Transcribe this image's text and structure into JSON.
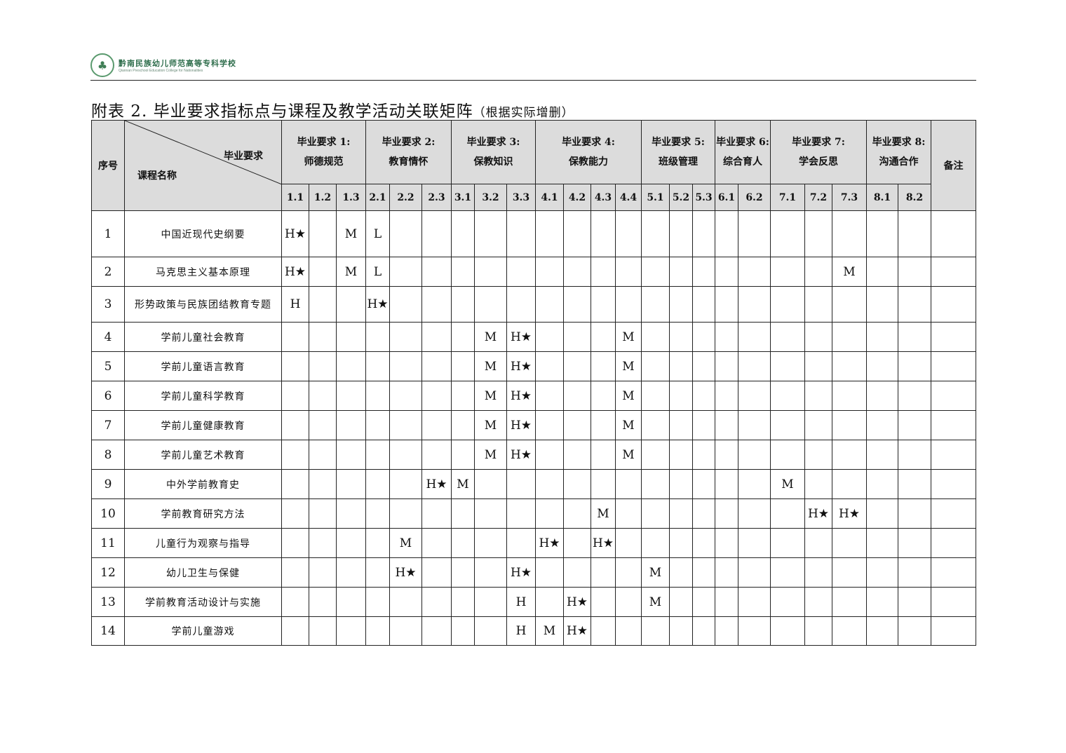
{
  "logo": {
    "cn": "黔南民族幼儿师范高等专科学校",
    "en": "Qiannan Preschool Education College for Nationalities"
  },
  "title": {
    "main": "附表 2. 毕业要求指标点与课程及教学活动关联矩阵",
    "note": "（根据实际增删）"
  },
  "header": {
    "seq": "序号",
    "diag_top": "毕业要求",
    "diag_bottom": "课程名称",
    "remark": "备注",
    "groups": [
      {
        "line1": "毕业要求 1:",
        "line2": "师德规范",
        "span": 3
      },
      {
        "line1": "毕业要求 2:",
        "line2": "教育情怀",
        "span": 3
      },
      {
        "line1": "毕业要求 3:",
        "line2": "保教知识",
        "span": 3
      },
      {
        "line1": "毕业要求 4:",
        "line2": "保教能力",
        "span": 4
      },
      {
        "line1": "毕业要求 5:",
        "line2": "班级管理",
        "span": 3
      },
      {
        "line1": "毕业要求 6:",
        "line2": "综合育人",
        "span": 2
      },
      {
        "line1": "毕业要求 7:",
        "line2": "学会反思",
        "span": 3
      },
      {
        "line1": "毕业要求 8:",
        "line2": "沟通合作",
        "span": 2
      }
    ],
    "indicators": [
      "1.1",
      "1.2",
      "1.3",
      "2.1",
      "2.2",
      "2.3",
      "3.1",
      "3.2",
      "3.3",
      "4.1",
      "4.2",
      "4.3",
      "4.4",
      "5.1",
      "5.2",
      "5.3",
      "6.1",
      "6.2",
      "7.1",
      "7.2",
      "7.3",
      "8.1",
      "8.2"
    ]
  },
  "rows": [
    {
      "no": "1",
      "course": "中国近现代史纲要",
      "cells": {
        "1.1": "H★",
        "1.3": "M",
        "2.1": "L"
      }
    },
    {
      "no": "2",
      "course": "马克思主义基本原理",
      "cells": {
        "1.1": "H★",
        "1.3": "M",
        "2.1": "L",
        "7.3": "M"
      }
    },
    {
      "no": "3",
      "course": "形势政策与民族团结教育专题",
      "cells": {
        "1.1": "H",
        "2.1": "H★"
      }
    },
    {
      "no": "4",
      "course": "学前儿童社会教育",
      "cells": {
        "3.2": "M",
        "3.3": "H★",
        "4.4": "M"
      }
    },
    {
      "no": "5",
      "course": "学前儿童语言教育",
      "cells": {
        "3.2": "M",
        "3.3": "H★",
        "4.4": "M"
      }
    },
    {
      "no": "6",
      "course": "学前儿童科学教育",
      "cells": {
        "3.2": "M",
        "3.3": "H★",
        "4.4": "M"
      }
    },
    {
      "no": "7",
      "course": "学前儿童健康教育",
      "cells": {
        "3.2": "M",
        "3.3": "H★",
        "4.4": "M"
      }
    },
    {
      "no": "8",
      "course": "学前儿童艺术教育",
      "cells": {
        "3.2": "M",
        "3.3": "H★",
        "4.4": "M"
      }
    },
    {
      "no": "9",
      "course": "中外学前教育史",
      "cells": {
        "2.3": "H★",
        "3.1": "M",
        "7.1": "M"
      }
    },
    {
      "no": "10",
      "course": "学前教育研究方法",
      "cells": {
        "4.3": "M",
        "7.2": "H★",
        "7.3": "H★"
      }
    },
    {
      "no": "11",
      "course": "儿童行为观察与指导",
      "cells": {
        "2.2": "M",
        "4.1": "H★",
        "4.3": "H★"
      }
    },
    {
      "no": "12",
      "course": "幼儿卫生与保健",
      "cells": {
        "2.2": "H★",
        "3.3": "H★",
        "5.1": "M"
      }
    },
    {
      "no": "13",
      "course": "学前教育活动设计与实施",
      "cells": {
        "3.3": "H",
        "4.2": "H★",
        "5.1": "M"
      }
    },
    {
      "no": "14",
      "course": "学前儿童游戏",
      "cells": {
        "3.3": "H",
        "4.1": "M",
        "4.2": "H★"
      }
    }
  ]
}
